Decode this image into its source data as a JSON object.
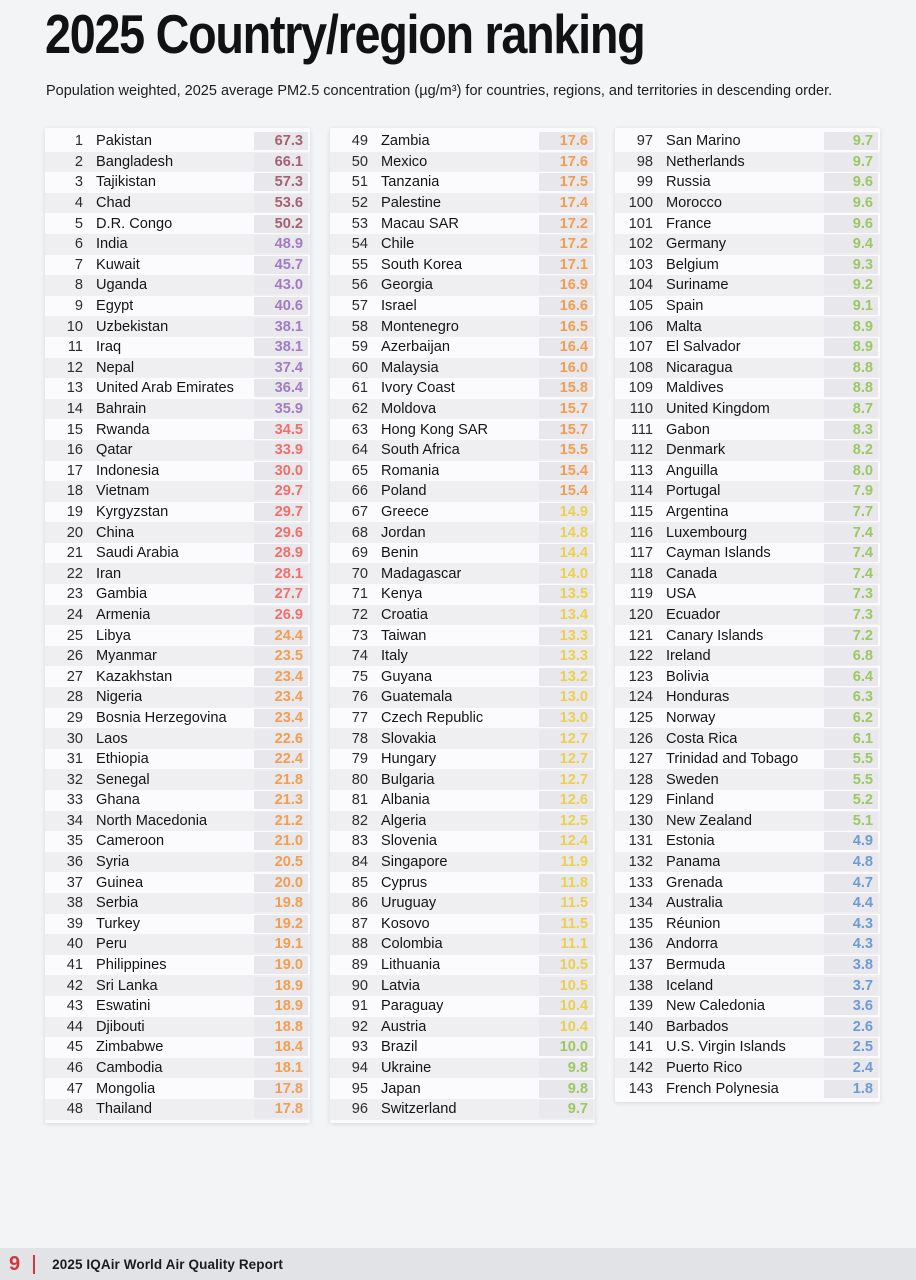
{
  "page": {
    "title": "2025 Country/region ranking",
    "subtitle": "Population weighted, 2025 average PM2.5 concentration (µg/m³) for countries, regions, and territories in descending order.",
    "footer": {
      "page_number": "9",
      "report_title": "2025 IQAir World Air Quality Report"
    }
  },
  "color_scale": {
    "accent_red": "#d2373c",
    "thresholds": [
      {
        "max": 5,
        "color": "#6d9bd3"
      },
      {
        "max": 10,
        "color": "#9cc763"
      },
      {
        "max": 15,
        "color": "#ead04e"
      },
      {
        "max": 25,
        "color": "#f19e51"
      },
      {
        "max": 35,
        "color": "#ef6f6b"
      },
      {
        "max": 50,
        "color": "#a17cc2"
      },
      {
        "max": 9999,
        "color": "#a5616f"
      }
    ]
  },
  "chart_data": {
    "type": "table",
    "title": "2025 Country/region ranking",
    "columns_headers": [
      "rank",
      "country",
      "pm25"
    ],
    "unit": "µg/m³"
  },
  "columns": [
    {
      "rows": [
        [
          1,
          "Pakistan",
          "67.3"
        ],
        [
          2,
          "Bangladesh",
          "66.1"
        ],
        [
          3,
          "Tajikistan",
          "57.3"
        ],
        [
          4,
          "Chad",
          "53.6"
        ],
        [
          5,
          "D.R. Congo",
          "50.2"
        ],
        [
          6,
          "India",
          "48.9"
        ],
        [
          7,
          "Kuwait",
          "45.7"
        ],
        [
          8,
          "Uganda",
          "43.0"
        ],
        [
          9,
          "Egypt",
          "40.6"
        ],
        [
          10,
          "Uzbekistan",
          "38.1"
        ],
        [
          11,
          "Iraq",
          "38.1"
        ],
        [
          12,
          "Nepal",
          "37.4"
        ],
        [
          13,
          "United Arab Emirates",
          "36.4"
        ],
        [
          14,
          "Bahrain",
          "35.9"
        ],
        [
          15,
          "Rwanda",
          "34.5"
        ],
        [
          16,
          "Qatar",
          "33.9"
        ],
        [
          17,
          "Indonesia",
          "30.0"
        ],
        [
          18,
          "Vietnam",
          "29.7"
        ],
        [
          19,
          "Kyrgyzstan",
          "29.7"
        ],
        [
          20,
          "China",
          "29.6"
        ],
        [
          21,
          "Saudi Arabia",
          "28.9"
        ],
        [
          22,
          "Iran",
          "28.1"
        ],
        [
          23,
          "Gambia",
          "27.7"
        ],
        [
          24,
          "Armenia",
          "26.9"
        ],
        [
          25,
          "Libya",
          "24.4"
        ],
        [
          26,
          "Myanmar",
          "23.5"
        ],
        [
          27,
          "Kazakhstan",
          "23.4"
        ],
        [
          28,
          "Nigeria",
          "23.4"
        ],
        [
          29,
          "Bosnia Herzegovina",
          "23.4"
        ],
        [
          30,
          "Laos",
          "22.6"
        ],
        [
          31,
          "Ethiopia",
          "22.4"
        ],
        [
          32,
          "Senegal",
          "21.8"
        ],
        [
          33,
          "Ghana",
          "21.3"
        ],
        [
          34,
          "North Macedonia",
          "21.2"
        ],
        [
          35,
          "Cameroon",
          "21.0"
        ],
        [
          36,
          "Syria",
          "20.5"
        ],
        [
          37,
          "Guinea",
          "20.0"
        ],
        [
          38,
          "Serbia",
          "19.8"
        ],
        [
          39,
          "Turkey",
          "19.2"
        ],
        [
          40,
          "Peru",
          "19.1"
        ],
        [
          41,
          "Philippines",
          "19.0"
        ],
        [
          42,
          "Sri Lanka",
          "18.9"
        ],
        [
          43,
          "Eswatini",
          "18.9"
        ],
        [
          44,
          "Djibouti",
          "18.8"
        ],
        [
          45,
          "Zimbabwe",
          "18.4"
        ],
        [
          46,
          "Cambodia",
          "18.1"
        ],
        [
          47,
          "Mongolia",
          "17.8"
        ],
        [
          48,
          "Thailand",
          "17.8"
        ]
      ]
    },
    {
      "rows": [
        [
          49,
          "Zambia",
          "17.6"
        ],
        [
          50,
          "Mexico",
          "17.6"
        ],
        [
          51,
          "Tanzania",
          "17.5"
        ],
        [
          52,
          "Palestine",
          "17.4"
        ],
        [
          53,
          "Macau SAR",
          "17.2"
        ],
        [
          54,
          "Chile",
          "17.2"
        ],
        [
          55,
          "South Korea",
          "17.1"
        ],
        [
          56,
          "Georgia",
          "16.9"
        ],
        [
          57,
          "Israel",
          "16.6"
        ],
        [
          58,
          "Montenegro",
          "16.5"
        ],
        [
          59,
          "Azerbaijan",
          "16.4"
        ],
        [
          60,
          "Malaysia",
          "16.0"
        ],
        [
          61,
          "Ivory Coast",
          "15.8"
        ],
        [
          62,
          "Moldova",
          "15.7"
        ],
        [
          63,
          "Hong Kong SAR",
          "15.7"
        ],
        [
          64,
          "South Africa",
          "15.5"
        ],
        [
          65,
          "Romania",
          "15.4"
        ],
        [
          66,
          "Poland",
          "15.4"
        ],
        [
          67,
          "Greece",
          "14.9"
        ],
        [
          68,
          "Jordan",
          "14.8"
        ],
        [
          69,
          "Benin",
          "14.4"
        ],
        [
          70,
          "Madagascar",
          "14.0"
        ],
        [
          71,
          "Kenya",
          "13.5"
        ],
        [
          72,
          "Croatia",
          "13.4"
        ],
        [
          73,
          "Taiwan",
          "13.3"
        ],
        [
          74,
          "Italy",
          "13.3"
        ],
        [
          75,
          "Guyana",
          "13.2"
        ],
        [
          76,
          "Guatemala",
          "13.0"
        ],
        [
          77,
          "Czech Republic",
          "13.0"
        ],
        [
          78,
          "Slovakia",
          "12.7"
        ],
        [
          79,
          "Hungary",
          "12.7"
        ],
        [
          80,
          "Bulgaria",
          "12.7"
        ],
        [
          81,
          "Albania",
          "12.6"
        ],
        [
          82,
          "Algeria",
          "12.5"
        ],
        [
          83,
          "Slovenia",
          "12.4"
        ],
        [
          84,
          "Singapore",
          "11.9"
        ],
        [
          85,
          "Cyprus",
          "11.8"
        ],
        [
          86,
          "Uruguay",
          "11.5"
        ],
        [
          87,
          "Kosovo",
          "11.5"
        ],
        [
          88,
          "Colombia",
          "11.1"
        ],
        [
          89,
          "Lithuania",
          "10.5"
        ],
        [
          90,
          "Latvia",
          "10.5"
        ],
        [
          91,
          "Paraguay",
          "10.4"
        ],
        [
          92,
          "Austria",
          "10.4"
        ],
        [
          93,
          "Brazil",
          "10.0"
        ],
        [
          94,
          "Ukraine",
          "9.8"
        ],
        [
          95,
          "Japan",
          "9.8"
        ],
        [
          96,
          "Switzerland",
          "9.7"
        ]
      ]
    },
    {
      "rows": [
        [
          97,
          "San Marino",
          "9.7"
        ],
        [
          98,
          "Netherlands",
          "9.7"
        ],
        [
          99,
          "Russia",
          "9.6"
        ],
        [
          100,
          "Morocco",
          "9.6"
        ],
        [
          101,
          "France",
          "9.6"
        ],
        [
          102,
          "Germany",
          "9.4"
        ],
        [
          103,
          "Belgium",
          "9.3"
        ],
        [
          104,
          "Suriname",
          "9.2"
        ],
        [
          105,
          "Spain",
          "9.1"
        ],
        [
          106,
          "Malta",
          "8.9"
        ],
        [
          107,
          "El Salvador",
          "8.9"
        ],
        [
          108,
          "Nicaragua",
          "8.8"
        ],
        [
          109,
          "Maldives",
          "8.8"
        ],
        [
          110,
          "United Kingdom",
          "8.7"
        ],
        [
          111,
          "Gabon",
          "8.3"
        ],
        [
          112,
          "Denmark",
          "8.2"
        ],
        [
          113,
          "Anguilla",
          "8.0"
        ],
        [
          114,
          "Portugal",
          "7.9"
        ],
        [
          115,
          "Argentina",
          "7.7"
        ],
        [
          116,
          "Luxembourg",
          "7.4"
        ],
        [
          117,
          "Cayman Islands",
          "7.4"
        ],
        [
          118,
          "Canada",
          "7.4"
        ],
        [
          119,
          "USA",
          "7.3"
        ],
        [
          120,
          "Ecuador",
          "7.3"
        ],
        [
          121,
          "Canary Islands",
          "7.2"
        ],
        [
          122,
          "Ireland",
          "6.8"
        ],
        [
          123,
          "Bolivia",
          "6.4"
        ],
        [
          124,
          "Honduras",
          "6.3"
        ],
        [
          125,
          "Norway",
          "6.2"
        ],
        [
          126,
          "Costa Rica",
          "6.1"
        ],
        [
          127,
          "Trinidad and Tobago",
          "5.5"
        ],
        [
          128,
          "Sweden",
          "5.5"
        ],
        [
          129,
          "Finland",
          "5.2"
        ],
        [
          130,
          "New Zealand",
          "5.1"
        ],
        [
          131,
          "Estonia",
          "4.9"
        ],
        [
          132,
          "Panama",
          "4.8"
        ],
        [
          133,
          "Grenada",
          "4.7"
        ],
        [
          134,
          "Australia",
          "4.4"
        ],
        [
          135,
          "Réunion",
          "4.3"
        ],
        [
          136,
          "Andorra",
          "4.3"
        ],
        [
          137,
          "Bermuda",
          "3.8"
        ],
        [
          138,
          "Iceland",
          "3.7"
        ],
        [
          139,
          "New Caledonia",
          "3.6"
        ],
        [
          140,
          "Barbados",
          "2.6"
        ],
        [
          141,
          "U.S. Virgin Islands",
          "2.5"
        ],
        [
          142,
          "Puerto Rico",
          "2.4"
        ],
        [
          143,
          "French Polynesia",
          "1.8"
        ]
      ]
    }
  ]
}
